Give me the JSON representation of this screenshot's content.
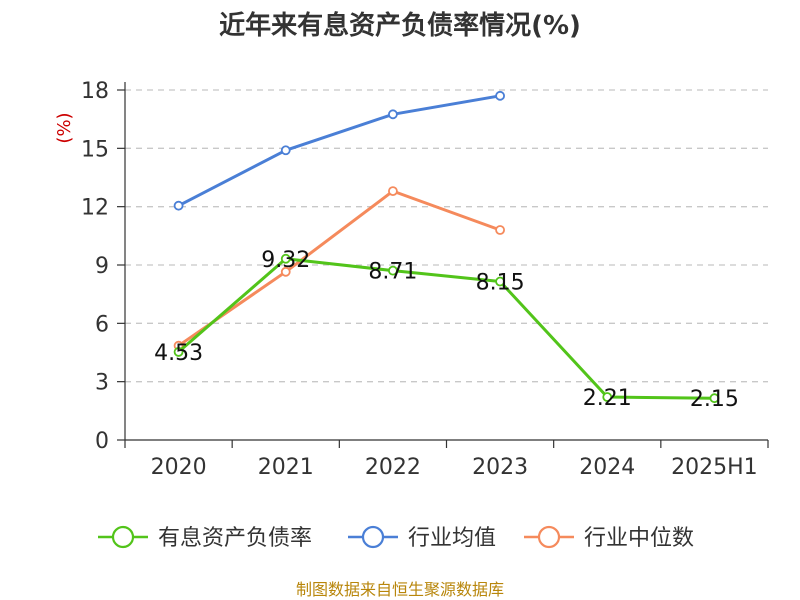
{
  "chart_data": {
    "type": "line",
    "title": "近年来有息资产负债率情况(%)",
    "ylabel": "(%)",
    "categories": [
      "2020",
      "2021",
      "2022",
      "2023",
      "2024",
      "2025H1"
    ],
    "yticks": [
      "0",
      "3",
      "6",
      "9",
      "12",
      "15",
      "18"
    ],
    "ylim": [
      0,
      18
    ],
    "grid": true,
    "legend_position": "bottom",
    "series": [
      {
        "name": "有息资产负债率",
        "color": "#52c41a",
        "values": [
          4.53,
          9.32,
          8.71,
          8.15,
          2.21,
          2.15
        ],
        "labels": [
          "4.53",
          "9.32",
          "8.71",
          "8.15",
          "2.21",
          "2.15"
        ]
      },
      {
        "name": "行业均值",
        "color": "#4a7fd6",
        "values": [
          12.05,
          14.9,
          16.75,
          17.7,
          null,
          null
        ]
      },
      {
        "name": "行业中位数",
        "color": "#f58a5c",
        "values": [
          4.85,
          8.65,
          12.8,
          10.8,
          null,
          null
        ]
      }
    ]
  },
  "source": "制图数据来自恒生聚源数据库"
}
